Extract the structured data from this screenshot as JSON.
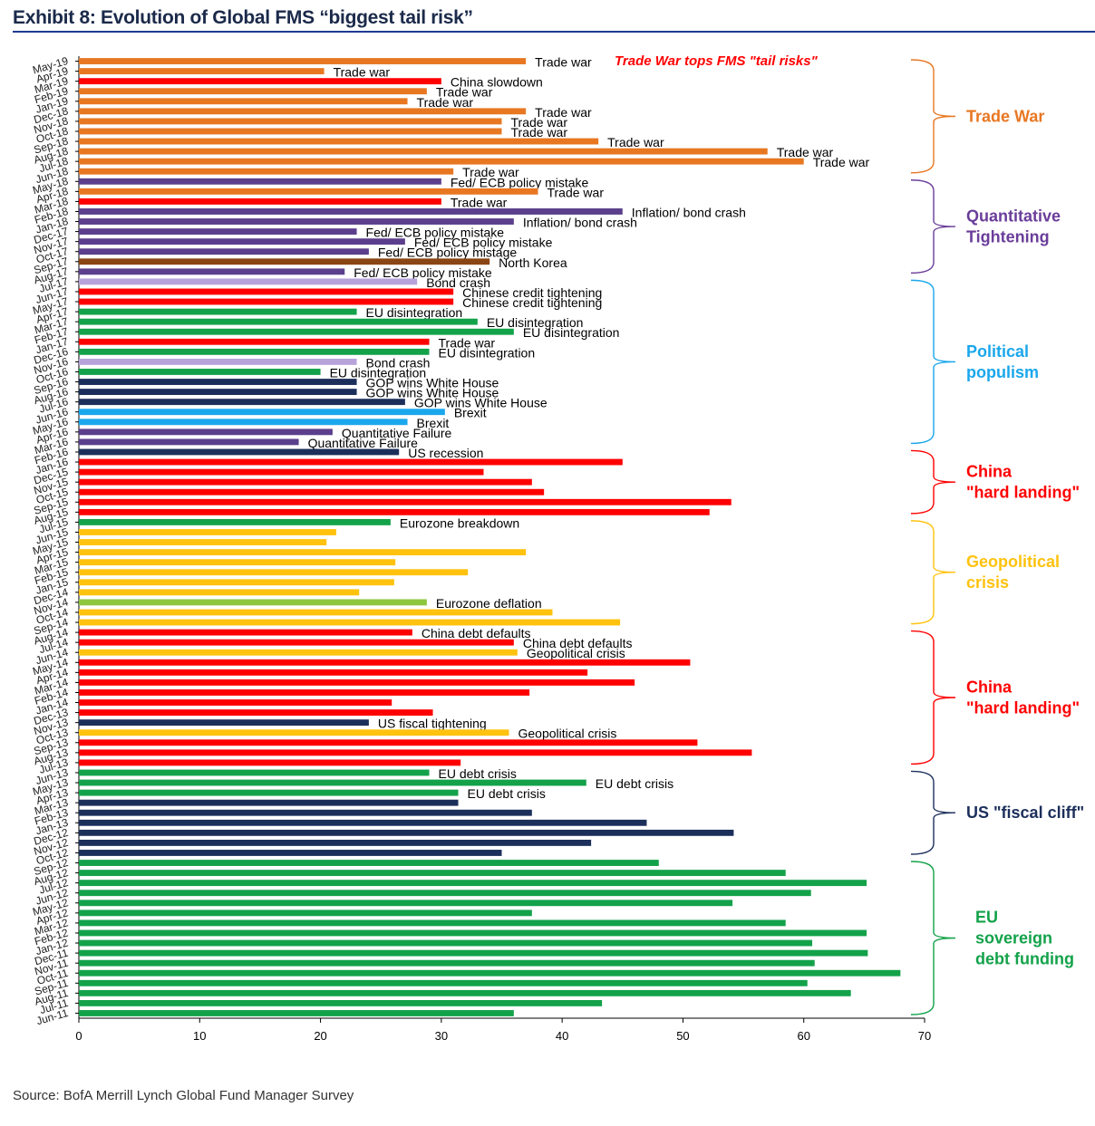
{
  "title": "Exhibit 8: Evolution of Global FMS “biggest tail risk”",
  "source": "Source: BofA Merrill Lynch Global Fund Manager Survey",
  "chart_data": {
    "type": "bar",
    "orientation": "horizontal",
    "xlim": [
      0,
      70
    ],
    "xticks": [
      0,
      10,
      20,
      30,
      40,
      50,
      60,
      70
    ],
    "annotation": "Trade War tops FMS \"tail risks\"",
    "colors": {
      "orange": "#e87722",
      "purple": "#5b3f8c",
      "brown": "#8b4513",
      "lavender": "#b7a3d9",
      "red": "#ff0000",
      "green": "#13a24a",
      "lightblue": "#1aa7ec",
      "navy": "#1c2f5b",
      "yellow": "#ffc20e",
      "lightgreen": "#8dc63f"
    },
    "bars": [
      {
        "m": "May-19",
        "v": 37,
        "c": "orange",
        "l": "Trade war"
      },
      {
        "m": "Apr-19",
        "v": 20.3,
        "c": "orange",
        "l": "Trade war"
      },
      {
        "m": "Mar-19",
        "v": 30,
        "c": "red",
        "l": "China slowdown"
      },
      {
        "m": "Feb-19",
        "v": 28.8,
        "c": "orange",
        "l": "Trade war"
      },
      {
        "m": "Jan-19",
        "v": 27.2,
        "c": "orange",
        "l": "Trade war"
      },
      {
        "m": "Dec-18",
        "v": 37,
        "c": "orange",
        "l": "Trade war"
      },
      {
        "m": "Nov-18",
        "v": 35,
        "c": "orange",
        "l": "Trade war"
      },
      {
        "m": "Oct-18",
        "v": 35,
        "c": "orange",
        "l": "Trade war"
      },
      {
        "m": "Sep-18",
        "v": 43,
        "c": "orange",
        "l": "Trade war"
      },
      {
        "m": "Aug-18",
        "v": 57,
        "c": "orange",
        "l": "Trade war"
      },
      {
        "m": "Jul-18",
        "v": 60,
        "c": "orange",
        "l": "Trade war"
      },
      {
        "m": "Jun-18",
        "v": 31,
        "c": "orange",
        "l": "Trade war"
      },
      {
        "m": "May-18",
        "v": 30,
        "c": "purple",
        "l": "Fed/ ECB policy mistake"
      },
      {
        "m": "Apr-18",
        "v": 38,
        "c": "orange",
        "l": "Trade war"
      },
      {
        "m": "Mar-18",
        "v": 30,
        "c": "red",
        "l": "Trade war"
      },
      {
        "m": "Feb-18",
        "v": 45,
        "c": "purple",
        "l": "Inflation/ bond crash"
      },
      {
        "m": "Jan-18",
        "v": 36,
        "c": "purple",
        "l": "Inflation/ bond crash"
      },
      {
        "m": "Dec-17",
        "v": 23,
        "c": "purple",
        "l": "Fed/ ECB policy mistake"
      },
      {
        "m": "Nov-17",
        "v": 27,
        "c": "purple",
        "l": "Fed/ ECB policy mistake"
      },
      {
        "m": "Oct-17",
        "v": 24,
        "c": "purple",
        "l": "Fed/ ECB policy mistage"
      },
      {
        "m": "Sep-17",
        "v": 34,
        "c": "brown",
        "l": "North Korea"
      },
      {
        "m": "Aug-17",
        "v": 22,
        "c": "purple",
        "l": "Fed/ ECB policy mistake"
      },
      {
        "m": "Jul-17",
        "v": 28,
        "c": "lavender",
        "l": "Bond crash"
      },
      {
        "m": "Jun-17",
        "v": 31,
        "c": "red",
        "l": "Chinese credit tightening"
      },
      {
        "m": "May-17",
        "v": 31,
        "c": "red",
        "l": "Chinese credit tightening"
      },
      {
        "m": "Apr-17",
        "v": 23,
        "c": "green",
        "l": "EU disintegration"
      },
      {
        "m": "Mar-17",
        "v": 33,
        "c": "green",
        "l": "EU disintegration"
      },
      {
        "m": "Feb-17",
        "v": 36,
        "c": "green",
        "l": "EU disintegration"
      },
      {
        "m": "Jan-17",
        "v": 29,
        "c": "red",
        "l": "Trade war"
      },
      {
        "m": "Dec-16",
        "v": 29,
        "c": "green",
        "l": "EU disintegration"
      },
      {
        "m": "Nov-16",
        "v": 23,
        "c": "lavender",
        "l": "Bond crash"
      },
      {
        "m": "Oct-16",
        "v": 20,
        "c": "green",
        "l": "EU disintegration"
      },
      {
        "m": "Sep-16",
        "v": 23,
        "c": "navy",
        "l": "GOP wins White House"
      },
      {
        "m": "Aug-16",
        "v": 23,
        "c": "navy",
        "l": "GOP wins White House"
      },
      {
        "m": "Jul-16",
        "v": 27,
        "c": "navy",
        "l": "GOP wins White House"
      },
      {
        "m": "Jun-16",
        "v": 30.3,
        "c": "lightblue",
        "l": "Brexit"
      },
      {
        "m": "May-16",
        "v": 27.2,
        "c": "lightblue",
        "l": "Brexit"
      },
      {
        "m": "Apr-16",
        "v": 21,
        "c": "purple",
        "l": "Quantitative Failure"
      },
      {
        "m": "Mar-16",
        "v": 18.2,
        "c": "purple",
        "l": "Quantitative Failure"
      },
      {
        "m": "Feb-16",
        "v": 26.5,
        "c": "navy",
        "l": "US recession"
      },
      {
        "m": "Jan-16",
        "v": 45,
        "c": "red",
        "l": ""
      },
      {
        "m": "Dec-15",
        "v": 33.5,
        "c": "red",
        "l": ""
      },
      {
        "m": "Nov-15",
        "v": 37.5,
        "c": "red",
        "l": ""
      },
      {
        "m": "Oct-15",
        "v": 38.5,
        "c": "red",
        "l": ""
      },
      {
        "m": "Sep-15",
        "v": 54,
        "c": "red",
        "l": ""
      },
      {
        "m": "Aug-15",
        "v": 52.2,
        "c": "red",
        "l": ""
      },
      {
        "m": "Jul-15",
        "v": 25.8,
        "c": "green",
        "l": "Eurozone breakdown"
      },
      {
        "m": "Jun-15",
        "v": 21.3,
        "c": "yellow",
        "l": ""
      },
      {
        "m": "May-15",
        "v": 20.5,
        "c": "yellow",
        "l": ""
      },
      {
        "m": "Apr-15",
        "v": 37,
        "c": "yellow",
        "l": ""
      },
      {
        "m": "Mar-15",
        "v": 26.2,
        "c": "yellow",
        "l": ""
      },
      {
        "m": "Feb-15",
        "v": 32.2,
        "c": "yellow",
        "l": ""
      },
      {
        "m": "Jan-15",
        "v": 26.1,
        "c": "yellow",
        "l": ""
      },
      {
        "m": "Dec-14",
        "v": 23.2,
        "c": "yellow",
        "l": ""
      },
      {
        "m": "Nov-14",
        "v": 28.8,
        "c": "lightgreen",
        "l": "Eurozone deflation"
      },
      {
        "m": "Oct-14",
        "v": 39.2,
        "c": "yellow",
        "l": ""
      },
      {
        "m": "Sep-14",
        "v": 44.8,
        "c": "yellow",
        "l": ""
      },
      {
        "m": "Aug-14",
        "v": 27.6,
        "c": "red",
        "l": "China debt defaults"
      },
      {
        "m": "Jul-14",
        "v": 36,
        "c": "red",
        "l": "China debt defaults"
      },
      {
        "m": "Jun-14",
        "v": 36.3,
        "c": "yellow",
        "l": "Geopolitical crisis"
      },
      {
        "m": "May-14",
        "v": 50.6,
        "c": "red",
        "l": ""
      },
      {
        "m": "Apr-14",
        "v": 42.1,
        "c": "red",
        "l": ""
      },
      {
        "m": "Mar-14",
        "v": 46,
        "c": "red",
        "l": ""
      },
      {
        "m": "Feb-14",
        "v": 37.3,
        "c": "red",
        "l": ""
      },
      {
        "m": "Jan-14",
        "v": 25.9,
        "c": "red",
        "l": ""
      },
      {
        "m": "Dec-13",
        "v": 29.3,
        "c": "red",
        "l": ""
      },
      {
        "m": "Nov-13",
        "v": 24,
        "c": "navy",
        "l": "US fiscal tightening"
      },
      {
        "m": "Oct-13",
        "v": 35.6,
        "c": "yellow",
        "l": "Geopolitical crisis"
      },
      {
        "m": "Sep-13",
        "v": 51.2,
        "c": "red",
        "l": ""
      },
      {
        "m": "Aug-13",
        "v": 55.7,
        "c": "red",
        "l": ""
      },
      {
        "m": "Jul-13",
        "v": 31.6,
        "c": "red",
        "l": ""
      },
      {
        "m": "Jun-13",
        "v": 29,
        "c": "green",
        "l": "EU debt crisis"
      },
      {
        "m": "May-13",
        "v": 42,
        "c": "green",
        "l": "EU debt crisis"
      },
      {
        "m": "Apr-13",
        "v": 31.4,
        "c": "green",
        "l": "EU debt crisis"
      },
      {
        "m": "Mar-13",
        "v": 31.4,
        "c": "navy",
        "l": ""
      },
      {
        "m": "Feb-13",
        "v": 37.5,
        "c": "navy",
        "l": ""
      },
      {
        "m": "Jan-13",
        "v": 47,
        "c": "navy",
        "l": ""
      },
      {
        "m": "Dec-12",
        "v": 54.2,
        "c": "navy",
        "l": ""
      },
      {
        "m": "Nov-12",
        "v": 42.4,
        "c": "navy",
        "l": ""
      },
      {
        "m": "Oct-12",
        "v": 35,
        "c": "navy",
        "l": ""
      },
      {
        "m": "Sep-12",
        "v": 48,
        "c": "green",
        "l": ""
      },
      {
        "m": "Aug-12",
        "v": 58.5,
        "c": "green",
        "l": ""
      },
      {
        "m": "Jul-12",
        "v": 65.2,
        "c": "green",
        "l": ""
      },
      {
        "m": "Jun-12",
        "v": 60.6,
        "c": "green",
        "l": ""
      },
      {
        "m": "May-12",
        "v": 54.1,
        "c": "green",
        "l": ""
      },
      {
        "m": "Apr-12",
        "v": 37.5,
        "c": "green",
        "l": ""
      },
      {
        "m": "Mar-12",
        "v": 58.5,
        "c": "green",
        "l": ""
      },
      {
        "m": "Feb-12",
        "v": 65.2,
        "c": "green",
        "l": ""
      },
      {
        "m": "Jan-12",
        "v": 60.7,
        "c": "green",
        "l": ""
      },
      {
        "m": "Dec-11",
        "v": 65.3,
        "c": "green",
        "l": ""
      },
      {
        "m": "Nov-11",
        "v": 60.9,
        "c": "green",
        "l": ""
      },
      {
        "m": "Oct-11",
        "v": 68,
        "c": "green",
        "l": ""
      },
      {
        "m": "Sep-11",
        "v": 60.3,
        "c": "green",
        "l": ""
      },
      {
        "m": "Aug-11",
        "v": 63.9,
        "c": "green",
        "l": ""
      },
      {
        "m": "Jul-11",
        "v": 43.3,
        "c": "green",
        "l": ""
      },
      {
        "m": "Jun-11",
        "v": 36,
        "c": "green",
        "l": ""
      }
    ],
    "groups": [
      {
        "lines": [
          "Trade War"
        ],
        "color": "#e87722",
        "from": "May-19",
        "to": "Jun-18"
      },
      {
        "lines": [
          "Quantitative",
          "Tightening"
        ],
        "color": "#6a3d9a",
        "from": "May-18",
        "to": "Aug-17"
      },
      {
        "lines": [
          "Political",
          "populism"
        ],
        "color": "#1aa7ec",
        "from": "Jul-17",
        "to": "Mar-16"
      },
      {
        "lines": [
          "China",
          "\"hard landing\""
        ],
        "color": "#ff0000",
        "from": "Feb-16",
        "to": "Aug-15"
      },
      {
        "lines": [
          "Geopolitical",
          "crisis"
        ],
        "color": "#ffc20e",
        "from": "Jul-15",
        "to": "Sep-14"
      },
      {
        "lines": [
          "China",
          "\"hard landing\""
        ],
        "color": "#ff0000",
        "from": "Aug-14",
        "to": "Jul-13"
      },
      {
        "lines": [
          "US \"fiscal cliff\""
        ],
        "color": "#1c2f5b",
        "from": "Jun-13",
        "to": "Oct-12"
      },
      {
        "lines": [
          "EU",
          "sovereign",
          "debt funding"
        ],
        "color": "#13a24a",
        "from": "Sep-12",
        "to": "Jun-11"
      }
    ]
  }
}
